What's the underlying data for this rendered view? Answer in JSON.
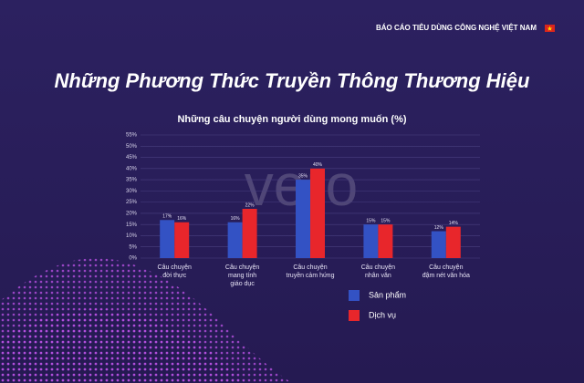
{
  "header": "BÁO CÁO TIÊU DÙNG CÔNG NGHỆ VIỆT NAM",
  "watermark": "vero",
  "chart_data": {
    "type": "bar",
    "title": "Những Phương Thức Truyền Thông Thương Hiệu",
    "subtitle": "Những câu chuyện người dùng mong muốn (%)",
    "categories": [
      [
        "Câu chuyện",
        "đời thực"
      ],
      [
        "Câu chuyện",
        "mang tính",
        "giáo dục"
      ],
      [
        "Câu chuyện",
        "truyền cảm hứng"
      ],
      [
        "Câu chuyện",
        "nhân văn"
      ],
      [
        "Câu chuyện",
        "đậm nét văn hóa"
      ]
    ],
    "series": [
      {
        "name": "Sản phẩm",
        "color": "#3352c4",
        "values": [
          17,
          16,
          35,
          15,
          12
        ],
        "value_labels": [
          "17%",
          "16%",
          "35%",
          "15%",
          "12%"
        ]
      },
      {
        "name": "Dịch vụ",
        "color": "#e8262b",
        "values": [
          16,
          22,
          40,
          15,
          14
        ],
        "value_labels": [
          "16%",
          "22%",
          "40%",
          "15%",
          "14%"
        ]
      }
    ],
    "ylim": [
      0,
      55
    ],
    "yticks": [
      {
        "value": 0,
        "label": "0%"
      },
      {
        "value": 5,
        "label": "5%"
      },
      {
        "value": 10,
        "label": "10%"
      },
      {
        "value": 15,
        "label": "15%"
      },
      {
        "value": 20,
        "label": "20%"
      },
      {
        "value": 25,
        "label": "25%"
      },
      {
        "value": 30,
        "label": "30%"
      },
      {
        "value": 35,
        "label": "35%"
      },
      {
        "value": 40,
        "label": "40%"
      },
      {
        "value": 45,
        "label": "45%"
      },
      {
        "value": 50,
        "label": "50%"
      },
      {
        "value": 55,
        "label": "55%"
      }
    ],
    "grid": true
  }
}
